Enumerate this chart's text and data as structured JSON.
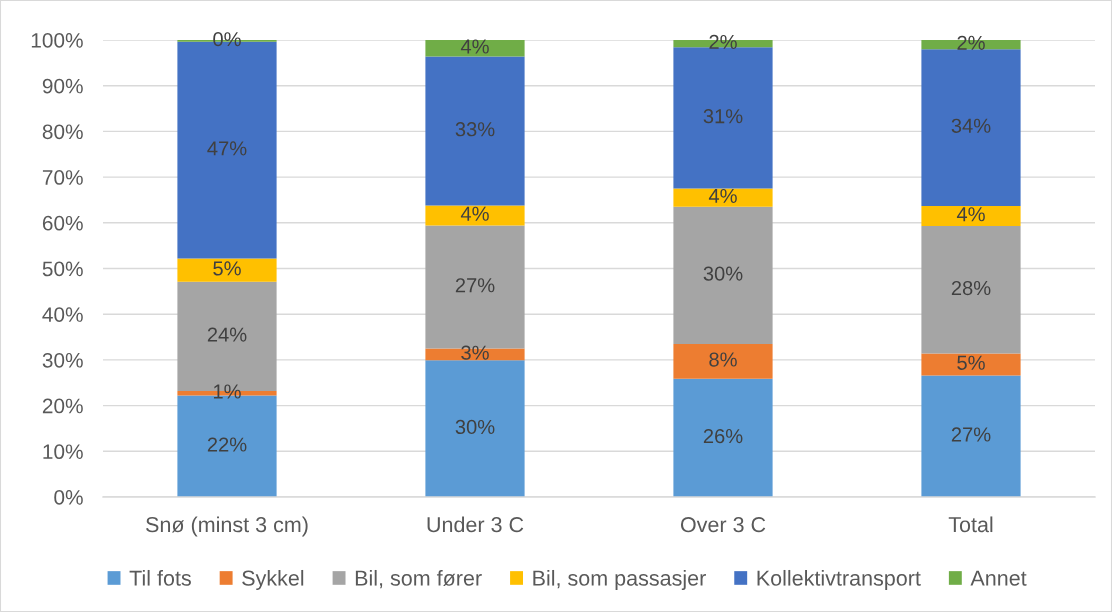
{
  "chart_data": {
    "type": "bar",
    "stacked": true,
    "categories": [
      "Snø (minst 3 cm)",
      "Under 3 C",
      "Over 3 C",
      "Total"
    ],
    "series": [
      {
        "name": "Til fots",
        "color": "#5b9bd5",
        "values": [
          22.2,
          29.9,
          25.9,
          26.6
        ],
        "value_labels": [
          "22%",
          "30%",
          "26%",
          "27%"
        ]
      },
      {
        "name": "Sykkel",
        "color": "#ed7d31",
        "values": [
          1.0,
          2.6,
          7.6,
          4.8
        ],
        "value_labels": [
          "1%",
          "3%",
          "8%",
          "5%"
        ]
      },
      {
        "name": "Bil, som fører",
        "color": "#a5a5a5",
        "values": [
          23.9,
          26.9,
          30.0,
          27.9
        ],
        "value_labels": [
          "24%",
          "27%",
          "30%",
          "28%"
        ]
      },
      {
        "name": "Bil, som passasjer",
        "color": "#ffc000",
        "values": [
          5.1,
          4.4,
          4.0,
          4.4
        ],
        "value_labels": [
          "5%",
          "4%",
          "4%",
          "4%"
        ]
      },
      {
        "name": "Kollektivtransport",
        "color": "#4472c4",
        "values": [
          47.4,
          32.6,
          30.9,
          34.3
        ],
        "value_labels": [
          "47%",
          "33%",
          "31%",
          "34%"
        ]
      },
      {
        "name": "Annet",
        "color": "#70ad47",
        "values": [
          0.4,
          3.6,
          1.6,
          2.0
        ],
        "value_labels": [
          "0%",
          "4%",
          "2%",
          "2%"
        ]
      }
    ],
    "ylim": [
      0,
      100
    ],
    "yticks": [
      {
        "value": 0,
        "label": "0%"
      },
      {
        "value": 10,
        "label": "10%"
      },
      {
        "value": 20,
        "label": "20%"
      },
      {
        "value": 30,
        "label": "30%"
      },
      {
        "value": 40,
        "label": "40%"
      },
      {
        "value": 50,
        "label": "50%"
      },
      {
        "value": 60,
        "label": "60%"
      },
      {
        "value": 70,
        "label": "70%"
      },
      {
        "value": 80,
        "label": "80%"
      },
      {
        "value": 90,
        "label": "90%"
      },
      {
        "value": 100,
        "label": "100%"
      }
    ],
    "grid": "y",
    "legend": "bottom"
  }
}
